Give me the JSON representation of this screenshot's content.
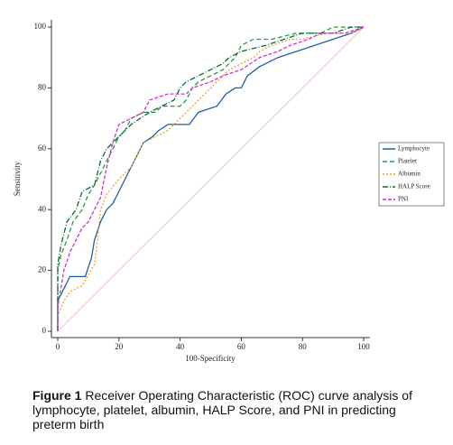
{
  "chart_data": {
    "type": "line",
    "xlabel": "100-Specificity",
    "ylabel": "Sensitivity",
    "xlim": [
      0,
      100
    ],
    "ylim": [
      0,
      100
    ],
    "xticks": [
      0,
      20,
      40,
      60,
      80,
      100
    ],
    "yticks": [
      0,
      20,
      40,
      60,
      80,
      100
    ],
    "grid": false,
    "legend": "right",
    "series": [
      {
        "name": "Lymphocyte",
        "color": "#1f5fa0",
        "dash": "none",
        "x": [
          0,
          0,
          2,
          4,
          9,
          11,
          12,
          14,
          16,
          18,
          20,
          22,
          24,
          26,
          28,
          31,
          33,
          36,
          43,
          46,
          52,
          55,
          58,
          60,
          62,
          66,
          72,
          78,
          84,
          90,
          96,
          100
        ],
        "values": [
          0,
          10,
          14,
          18,
          18,
          24,
          30,
          36,
          40,
          42,
          46,
          50,
          54,
          58,
          62,
          64,
          66,
          68,
          68,
          72,
          74,
          78,
          80,
          80,
          84,
          87,
          90,
          92,
          94,
          96,
          98,
          100
        ]
      },
      {
        "name": "Platelet",
        "color": "#2a9a3a",
        "dash": "5 3",
        "x": [
          0,
          0,
          1,
          3,
          5,
          8,
          10,
          12,
          14,
          16,
          18,
          20,
          22,
          24,
          28,
          32,
          34,
          40,
          42,
          44,
          46,
          50,
          54,
          58,
          60,
          64,
          70,
          78,
          86,
          90,
          100
        ],
        "values": [
          0,
          20,
          25,
          30,
          36,
          40,
          45,
          48,
          52,
          56,
          60,
          64,
          66,
          70,
          72,
          72,
          74,
          74,
          76,
          80,
          82,
          84,
          86,
          90,
          94,
          96,
          96,
          98,
          98,
          100,
          100
        ]
      },
      {
        "name": "Albumin",
        "color": "#e8a040",
        "dash": "2 2",
        "x": [
          0,
          0,
          2,
          4,
          8,
          12,
          13,
          14,
          16,
          20,
          24,
          26,
          28,
          32,
          36,
          40,
          44,
          48,
          52,
          56,
          60,
          64,
          66,
          70,
          76,
          80,
          88,
          96,
          100
        ],
        "values": [
          0,
          5,
          10,
          13,
          15,
          22,
          30,
          40,
          45,
          50,
          54,
          58,
          62,
          64,
          66,
          70,
          74,
          78,
          82,
          86,
          88,
          90,
          92,
          94,
          96,
          96,
          98,
          98,
          100
        ]
      },
      {
        "name": "HALP Score",
        "color": "#0a6a3a",
        "dash": "6 2 1 2",
        "x": [
          0,
          0,
          1,
          2,
          3,
          6,
          8,
          12,
          14,
          16,
          18,
          20,
          22,
          24,
          27,
          30,
          34,
          38,
          40,
          42,
          46,
          50,
          54,
          56,
          60,
          68,
          74,
          80,
          90,
          96,
          100
        ],
        "values": [
          0,
          22,
          28,
          32,
          36,
          40,
          46,
          48,
          56,
          60,
          62,
          64,
          66,
          68,
          70,
          72,
          74,
          76,
          80,
          82,
          84,
          86,
          88,
          90,
          92,
          94,
          96,
          98,
          98,
          100,
          100
        ]
      },
      {
        "name": "PNI",
        "color": "#cc33cc",
        "dash": "4 2",
        "x": [
          0,
          0,
          2,
          4,
          6,
          8,
          10,
          12,
          14,
          16,
          18,
          20,
          24,
          28,
          30,
          36,
          42,
          44,
          50,
          54,
          60,
          66,
          72,
          76,
          82,
          86,
          94,
          100
        ],
        "values": [
          0,
          8,
          20,
          26,
          30,
          34,
          36,
          40,
          44,
          54,
          62,
          68,
          70,
          72,
          76,
          78,
          78,
          80,
          82,
          84,
          86,
          90,
          92,
          94,
          96,
          98,
          98,
          100
        ]
      }
    ]
  },
  "caption": {
    "label": "Figure 1",
    "text": "Receiver Operating Characteristic (ROC) curve analysis of lymphocyte, platelet, albumin, HALP Score, and PNI in predicting preterm birth"
  }
}
